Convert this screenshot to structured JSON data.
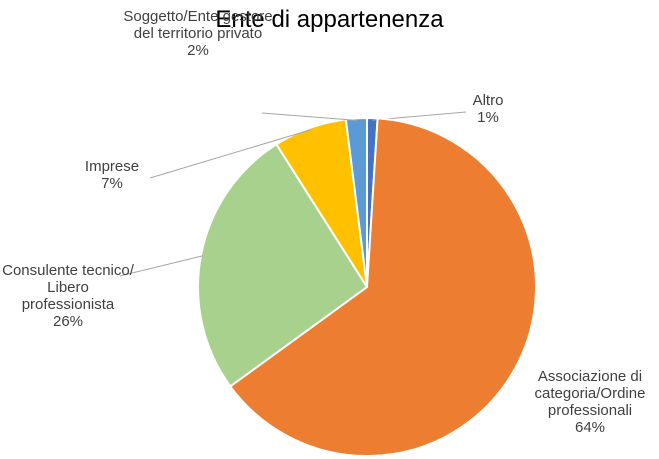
{
  "chart_data": {
    "type": "pie",
    "title": "Ente di appartenenza",
    "categories": [
      "Altro",
      "Associazione di categoria/Ordine professionali",
      "Consulente tecnico/ Libero professionista",
      "Imprese",
      "Soggetto/Ente gestore del territorio privato"
    ],
    "values": [
      1,
      64,
      26,
      7,
      2
    ],
    "value_labels": [
      "1%",
      "64%",
      "26%",
      "7%",
      "2%"
    ],
    "colors": [
      "#4472c4",
      "#ed7d31",
      "#a9d18e",
      "#ffc000",
      "#5b9bd5"
    ]
  }
}
